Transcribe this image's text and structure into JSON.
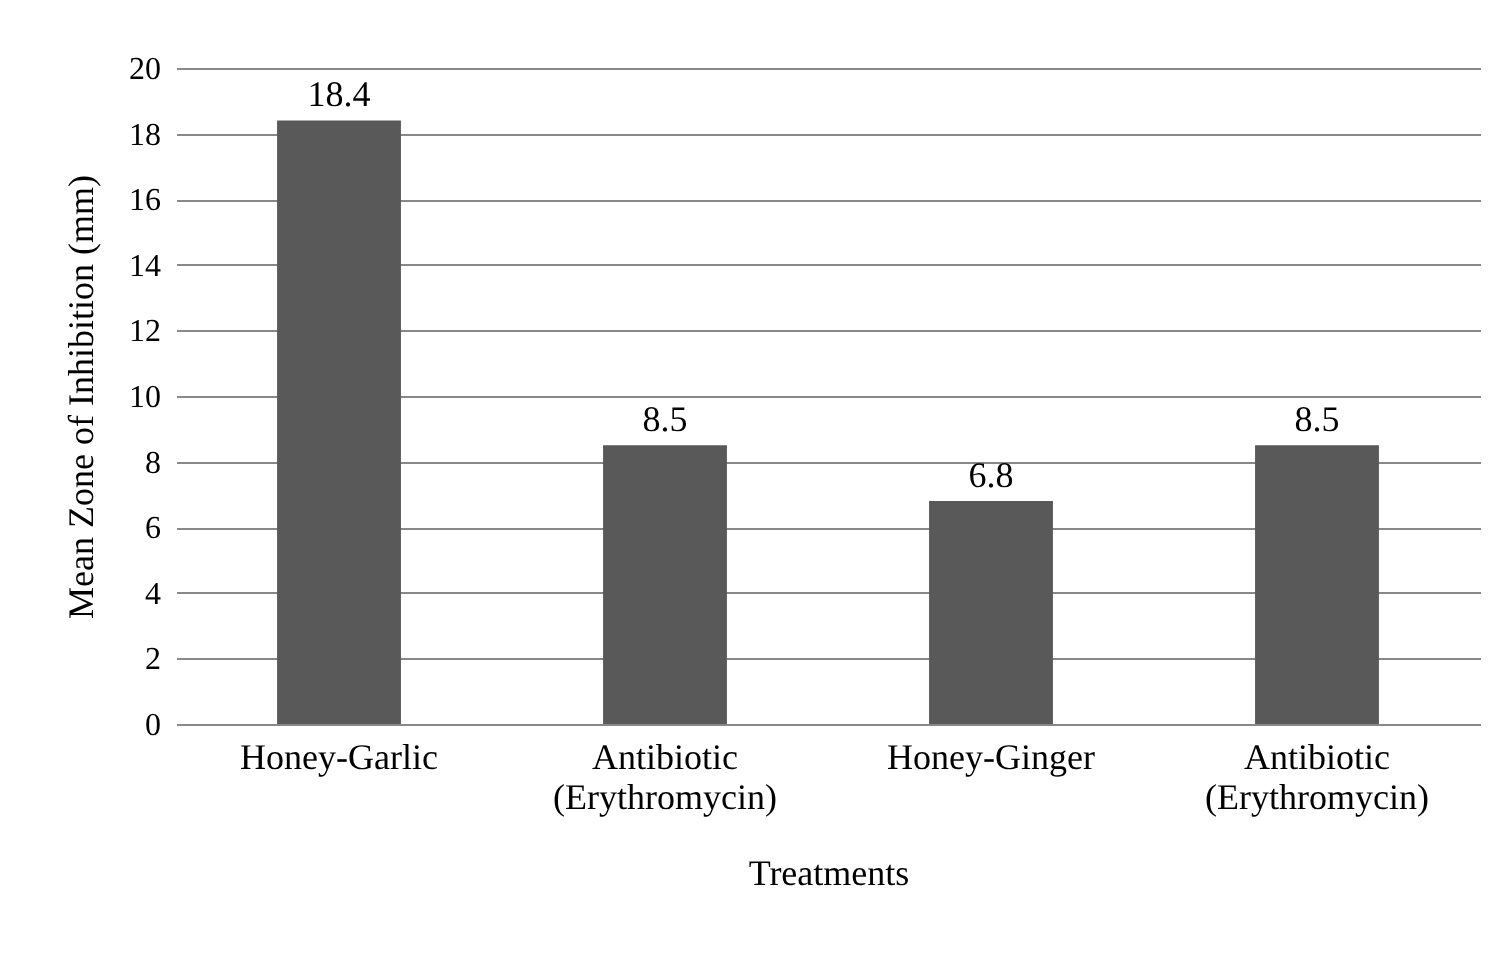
{
  "chart_data": {
    "type": "bar",
    "xlabel": "Treatments",
    "ylabel": "Mean Zone of Inhibition (mm)",
    "categories": [
      "Honey-Garlic",
      "Antibiotic (Erythromycin)",
      "Honey-Ginger",
      "Antibiotic (Erythromycin)"
    ],
    "values": [
      18.4,
      8.5,
      6.8,
      8.5
    ],
    "color": "#595959",
    "ylim": [
      0,
      20
    ],
    "yticks": [
      0,
      2,
      4,
      6,
      8,
      10,
      12,
      14,
      16,
      18,
      20
    ],
    "grid": "y",
    "data_labels": true
  }
}
